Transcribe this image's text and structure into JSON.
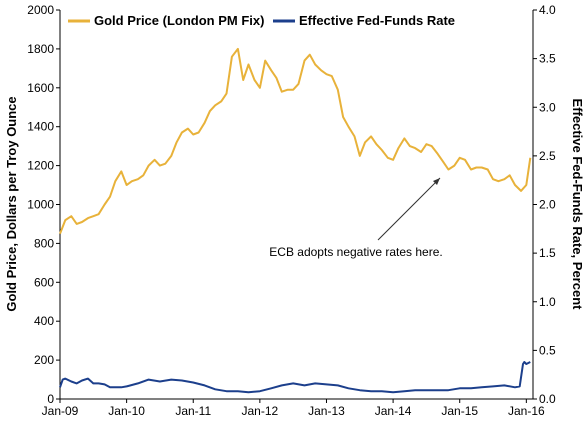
{
  "chart_data": {
    "type": "line",
    "title": "",
    "xlabel": "",
    "ylabel": "Gold Price, Dollars per Troy Ounce",
    "y2label": "Effective Fed-Funds Rate, Percent",
    "xlim": [
      2009.0,
      2016.1
    ],
    "ylim": [
      0,
      2000
    ],
    "y2lim": [
      0,
      4.0
    ],
    "grid": false,
    "legend_position": "top",
    "x_ticks": [
      {
        "value": 2009.0,
        "label": "Jan-09"
      },
      {
        "value": 2010.0,
        "label": "Jan-10"
      },
      {
        "value": 2011.0,
        "label": "Jan-11"
      },
      {
        "value": 2012.0,
        "label": "Jan-12"
      },
      {
        "value": 2013.0,
        "label": "Jan-13"
      },
      {
        "value": 2014.0,
        "label": "Jan-14"
      },
      {
        "value": 2015.0,
        "label": "Jan-15"
      },
      {
        "value": 2016.0,
        "label": "Jan-16"
      }
    ],
    "y_ticks": [
      {
        "value": 0,
        "label": "0"
      },
      {
        "value": 200,
        "label": "200"
      },
      {
        "value": 400,
        "label": "400"
      },
      {
        "value": 600,
        "label": "600"
      },
      {
        "value": 800,
        "label": "800"
      },
      {
        "value": 1000,
        "label": "1000"
      },
      {
        "value": 1200,
        "label": "1200"
      },
      {
        "value": 1400,
        "label": "1400"
      },
      {
        "value": 1600,
        "label": "1600"
      },
      {
        "value": 1800,
        "label": "1800"
      },
      {
        "value": 2000,
        "label": "2000"
      }
    ],
    "y2_ticks": [
      {
        "value": 0.0,
        "label": "0.0"
      },
      {
        "value": 0.5,
        "label": "0.5"
      },
      {
        "value": 1.0,
        "label": "1.0"
      },
      {
        "value": 1.5,
        "label": "1.5"
      },
      {
        "value": 2.0,
        "label": "2.0"
      },
      {
        "value": 2.5,
        "label": "2.5"
      },
      {
        "value": 3.0,
        "label": "3.0"
      },
      {
        "value": 3.5,
        "label": "3.5"
      },
      {
        "value": 4.0,
        "label": "4.0"
      }
    ],
    "series": [
      {
        "name": "Gold Price (London PM Fix)",
        "axis": "left",
        "color": "#E8B23A",
        "x": [
          2009.0,
          2009.08,
          2009.17,
          2009.25,
          2009.33,
          2009.42,
          2009.5,
          2009.58,
          2009.67,
          2009.75,
          2009.83,
          2009.92,
          2010.0,
          2010.08,
          2010.17,
          2010.25,
          2010.33,
          2010.42,
          2010.5,
          2010.58,
          2010.67,
          2010.75,
          2010.83,
          2010.92,
          2011.0,
          2011.08,
          2011.17,
          2011.25,
          2011.33,
          2011.42,
          2011.5,
          2011.58,
          2011.67,
          2011.75,
          2011.83,
          2011.92,
          2012.0,
          2012.08,
          2012.17,
          2012.25,
          2012.33,
          2012.42,
          2012.5,
          2012.58,
          2012.67,
          2012.75,
          2012.83,
          2012.92,
          2013.0,
          2013.08,
          2013.17,
          2013.25,
          2013.33,
          2013.42,
          2013.5,
          2013.58,
          2013.67,
          2013.75,
          2013.83,
          2013.92,
          2014.0,
          2014.08,
          2014.17,
          2014.25,
          2014.33,
          2014.42,
          2014.5,
          2014.58,
          2014.67,
          2014.75,
          2014.83,
          2014.92,
          2015.0,
          2015.08,
          2015.17,
          2015.25,
          2015.33,
          2015.42,
          2015.5,
          2015.58,
          2015.67,
          2015.75,
          2015.83,
          2015.92,
          2016.0,
          2016.06
        ],
        "values": [
          850,
          920,
          940,
          900,
          910,
          930,
          940,
          950,
          1000,
          1040,
          1120,
          1170,
          1100,
          1120,
          1130,
          1150,
          1200,
          1230,
          1200,
          1210,
          1250,
          1320,
          1370,
          1390,
          1360,
          1370,
          1420,
          1480,
          1510,
          1530,
          1570,
          1760,
          1800,
          1640,
          1720,
          1640,
          1600,
          1740,
          1690,
          1650,
          1580,
          1590,
          1590,
          1620,
          1740,
          1770,
          1720,
          1690,
          1670,
          1660,
          1590,
          1450,
          1400,
          1350,
          1250,
          1320,
          1350,
          1310,
          1280,
          1240,
          1230,
          1290,
          1340,
          1300,
          1290,
          1270,
          1310,
          1300,
          1260,
          1220,
          1180,
          1200,
          1240,
          1230,
          1180,
          1190,
          1190,
          1180,
          1130,
          1120,
          1130,
          1150,
          1100,
          1070,
          1100,
          1240
        ]
      },
      {
        "name": "Effective Fed-Funds Rate",
        "axis": "right",
        "color": "#1C3F8C",
        "x": [
          2009.0,
          2009.04,
          2009.08,
          2009.17,
          2009.25,
          2009.33,
          2009.42,
          2009.5,
          2009.58,
          2009.67,
          2009.75,
          2009.83,
          2009.92,
          2010.0,
          2010.17,
          2010.33,
          2010.5,
          2010.67,
          2010.83,
          2011.0,
          2011.17,
          2011.33,
          2011.5,
          2011.67,
          2011.83,
          2012.0,
          2012.17,
          2012.33,
          2012.5,
          2012.67,
          2012.83,
          2013.0,
          2013.17,
          2013.33,
          2013.5,
          2013.67,
          2013.83,
          2014.0,
          2014.17,
          2014.33,
          2014.5,
          2014.67,
          2014.83,
          2015.0,
          2015.17,
          2015.33,
          2015.5,
          2015.67,
          2015.83,
          2015.9,
          2015.95,
          2015.97,
          2016.0,
          2016.06
        ],
        "values": [
          0.12,
          0.2,
          0.21,
          0.18,
          0.16,
          0.19,
          0.21,
          0.16,
          0.16,
          0.15,
          0.12,
          0.12,
          0.12,
          0.13,
          0.16,
          0.2,
          0.18,
          0.2,
          0.19,
          0.17,
          0.14,
          0.1,
          0.08,
          0.08,
          0.07,
          0.08,
          0.11,
          0.14,
          0.16,
          0.14,
          0.16,
          0.15,
          0.14,
          0.11,
          0.09,
          0.08,
          0.08,
          0.07,
          0.08,
          0.09,
          0.09,
          0.09,
          0.09,
          0.11,
          0.11,
          0.12,
          0.13,
          0.14,
          0.12,
          0.13,
          0.36,
          0.38,
          0.36,
          0.38
        ]
      }
    ],
    "annotations": [
      {
        "text": "ECB adopts negative rates here.",
        "x": 2014.83,
        "y": 1220
      }
    ]
  }
}
